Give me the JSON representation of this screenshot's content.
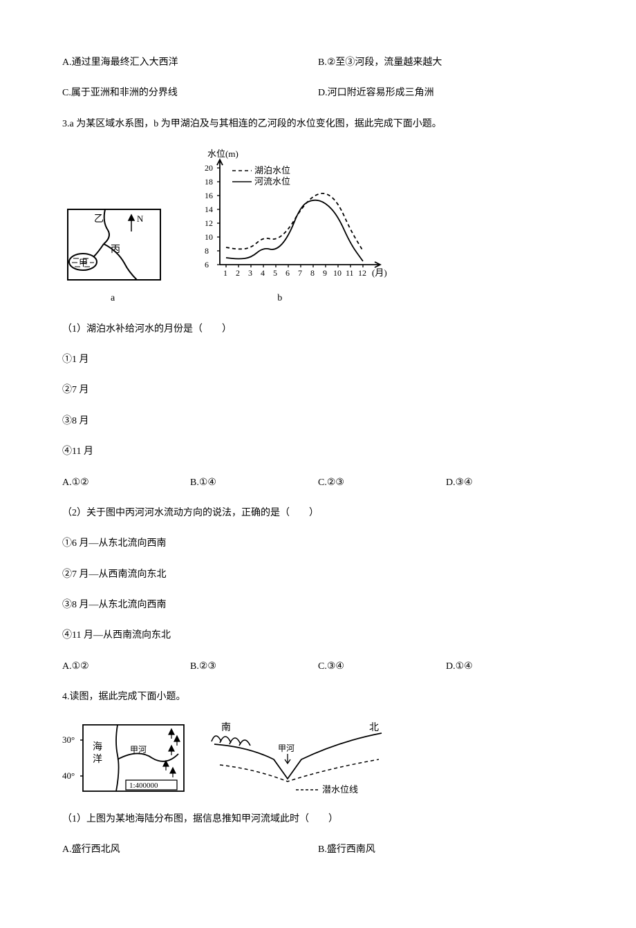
{
  "q2_options": {
    "optA": "A.通过里海最终汇入大西洋",
    "optB": "B.②至③河段，流量越来越大",
    "optC": "C.属于亚洲和非洲的分界线",
    "optD": "D.河口附近容易形成三角洲"
  },
  "q3": {
    "stem": "3.a 为某区域水系图，b 为甲湖泊及与其相连的乙河段的水位变化图，据此完成下面小题。",
    "figA": {
      "labelYi": "乙",
      "labelN": "N",
      "labelBing": "丙",
      "labelJia": "甲",
      "caption": "a",
      "stroke": "#000000",
      "fill": "#ffffff"
    },
    "figB": {
      "ylabel": "水位(m)",
      "xlabel": "(月)",
      "legend_lake": "湖泊水位",
      "legend_river": "河流水位",
      "x_categories": [
        "1",
        "2",
        "3",
        "4",
        "5",
        "6",
        "7",
        "8",
        "9",
        "10",
        "11",
        "12"
      ],
      "y_ticks": [
        6,
        8,
        10,
        12,
        14,
        16,
        18,
        20
      ],
      "ylim": [
        6,
        20
      ],
      "lake_values": [
        8.5,
        8.2,
        8.4,
        10,
        9.5,
        11,
        14,
        16,
        16.5,
        15,
        11,
        8
      ],
      "river_values": [
        7,
        6.8,
        7,
        8.5,
        8,
        10,
        14.5,
        15.5,
        15,
        13,
        9,
        6.5
      ],
      "caption": "b",
      "legend_x_text": 98,
      "stroke": "#000000",
      "grid_on": false,
      "aspect_w": 260,
      "aspect_h": 190
    },
    "p1": {
      "stem": "（1）湖泊水补给河水的月份是（　　）",
      "c1": "①1 月",
      "c2": "②7 月",
      "c3": "③8 月",
      "c4": "④11 月",
      "optA": "A.①②",
      "optB": "B.①④",
      "optC": "C.②③",
      "optD": "D.③④"
    },
    "p2": {
      "stem": "（2）关于图中丙河河水流动方向的说法，正确的是（　　）",
      "c1": "①6 月—从东北流向西南",
      "c2": "②7 月—从西南流向东北",
      "c3": "③8 月—从东北流向西南",
      "c4": "④11 月—从西南流向东北",
      "optA": "A.①②",
      "optB": "B.②③",
      "optC": "C.③④",
      "optD": "D.①④"
    }
  },
  "q4": {
    "stem": "4.读图，据此完成下面小题。",
    "figA": {
      "lat30": "30°",
      "lat40": "40°",
      "ocean": "海\n洋",
      "river": "甲河",
      "scale": "1:400000",
      "stroke": "#000000"
    },
    "figB": {
      "south": "南",
      "north": "北",
      "river": "甲河",
      "gw": "潜水位线",
      "stroke": "#000000",
      "dash": "4,3"
    },
    "p1": {
      "stem": "（1）上图为某地海陆分布图，据信息推知甲河流域此时（　　）",
      "optA": "A.盛行西北风",
      "optB": "B.盛行西南风"
    }
  }
}
